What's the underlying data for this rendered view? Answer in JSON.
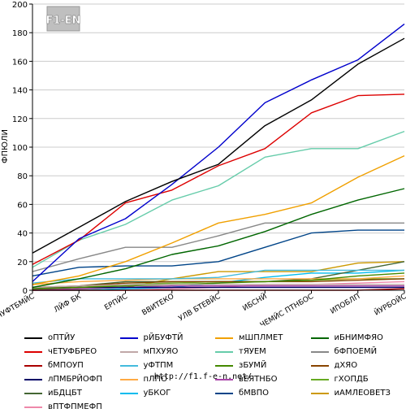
{
  "chart_data": {
    "type": "line",
    "ylabel": "ФПЮЛИ",
    "xlabel": "",
    "ylim": [
      0,
      200
    ],
    "y_ticks": [
      0,
      20,
      40,
      60,
      80,
      100,
      120,
      140,
      160,
      180,
      200
    ],
    "grid": "horizontal",
    "legend_position": "bottom",
    "categories": [
      "БЧУФТБМЙС",
      "ЛЙФ БК",
      "ЕРПЙС",
      "ВВИТЕКО",
      "УЛВ БТЕВЙС",
      "ИБСНЙ",
      "ЧЕМЙС ПТНБОС",
      "ИПОБЛП",
      "ЙУРБОЙС"
    ],
    "series": [
      {
        "name": "оПТЙУ",
        "color": "#000000",
        "values": [
          26,
          44,
          62,
          76,
          88,
          115,
          133,
          158,
          176
        ]
      },
      {
        "name": "рЙБУФТЙ",
        "color": "#0000cc",
        "values": [
          6,
          36,
          50,
          74,
          100,
          131,
          147,
          161,
          186
        ]
      },
      {
        "name": "мШПЛМЕТ",
        "color": "#f0a000",
        "values": [
          4,
          10,
          20,
          33,
          47,
          53,
          61,
          79,
          94
        ]
      },
      {
        "name": "иБНИМФЯО",
        "color": "#006600",
        "values": [
          2,
          8,
          15,
          25,
          31,
          41,
          53,
          63,
          71
        ]
      },
      {
        "name": "чЕТУФБРЕО",
        "color": "#dd0000",
        "values": [
          18,
          35,
          61,
          70,
          87,
          99,
          124,
          136,
          137
        ]
      },
      {
        "name": "мПХУЯО",
        "color": "#c0a8a8",
        "values": [
          2,
          3,
          4,
          4,
          4,
          4,
          4,
          4,
          4
        ]
      },
      {
        "name": "тЯУЕМ",
        "color": "#66ccaa",
        "values": [
          16,
          35,
          46,
          63,
          73,
          93,
          99,
          99,
          111
        ]
      },
      {
        "name": "бФПОЕМЙ",
        "color": "#888888",
        "values": [
          13,
          22,
          30,
          30,
          38,
          47,
          47,
          47,
          47
        ]
      },
      {
        "name": "бМПОУП",
        "color": "#aa0000",
        "values": [
          0,
          0,
          0,
          0,
          0,
          0,
          0,
          0,
          1
        ]
      },
      {
        "name": "уФТПМ",
        "color": "#44bbdd",
        "values": [
          5,
          8,
          8,
          8,
          9,
          14,
          14,
          14,
          14
        ]
      },
      {
        "name": "зБУМЙ",
        "color": "#448800",
        "values": [
          1,
          2,
          3,
          4,
          5,
          6,
          7,
          10,
          12
        ]
      },
      {
        "name": "дХЯО",
        "color": "#884400",
        "values": [
          2,
          3,
          5,
          6,
          6,
          6,
          6,
          7,
          8
        ]
      },
      {
        "name": "лПМБРЙОФП",
        "color": "#000066",
        "values": [
          1,
          2,
          2,
          2,
          2,
          2,
          2,
          2,
          2
        ]
      },
      {
        "name": "пЛПО",
        "color": "#ffaa44",
        "values": [
          4,
          6,
          7,
          8,
          8,
          8,
          8,
          8,
          10
        ]
      },
      {
        "name": "вЕЯТНБО",
        "color": "#aa44aa",
        "values": [
          0,
          1,
          2,
          3,
          3,
          3,
          3,
          3,
          3
        ]
      },
      {
        "name": "гХОПДБ",
        "color": "#66aa22",
        "values": [
          0,
          2,
          4,
          5,
          6,
          6,
          7,
          8,
          8
        ]
      },
      {
        "name": "иБДЦБТ",
        "color": "#446633",
        "values": [
          1,
          3,
          6,
          6,
          6,
          6,
          8,
          14,
          20
        ]
      },
      {
        "name": "уБКОГ",
        "color": "#00bbee",
        "values": [
          0,
          0,
          1,
          2,
          5,
          9,
          12,
          12,
          14
        ]
      },
      {
        "name": "бМВПО",
        "color": "#004488",
        "values": [
          10,
          16,
          17,
          17,
          20,
          30,
          40,
          42,
          42
        ]
      },
      {
        "name": "иАМЛЕОВЕТЗ",
        "color": "#cc9900",
        "values": [
          0,
          1,
          2,
          8,
          13,
          13,
          13,
          19,
          20
        ]
      },
      {
        "name": "вПТФПМЕФП",
        "color": "#ee88aa",
        "values": [
          0,
          0,
          0,
          1,
          2,
          4,
          4,
          5,
          6
        ]
      }
    ]
  },
  "logo": {
    "text": "F1-EN"
  },
  "footer": {
    "url": "http://f1.f-e-n.net/"
  }
}
